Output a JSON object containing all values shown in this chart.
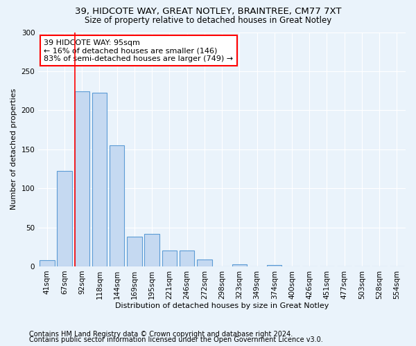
{
  "title1": "39, HIDCOTE WAY, GREAT NOTLEY, BRAINTREE, CM77 7XT",
  "title2": "Size of property relative to detached houses in Great Notley",
  "xlabel": "Distribution of detached houses by size in Great Notley",
  "ylabel": "Number of detached properties",
  "categories": [
    "41sqm",
    "67sqm",
    "92sqm",
    "118sqm",
    "144sqm",
    "169sqm",
    "195sqm",
    "221sqm",
    "246sqm",
    "272sqm",
    "298sqm",
    "323sqm",
    "349sqm",
    "374sqm",
    "400sqm",
    "426sqm",
    "451sqm",
    "477sqm",
    "503sqm",
    "528sqm",
    "554sqm"
  ],
  "values": [
    8,
    122,
    224,
    222,
    155,
    38,
    42,
    20,
    20,
    9,
    0,
    3,
    0,
    2,
    0,
    0,
    0,
    0,
    0,
    0,
    0
  ],
  "bar_color": "#c5d9f1",
  "bar_edge_color": "#5b9bd5",
  "annotation_text": "39 HIDCOTE WAY: 95sqm\n← 16% of detached houses are smaller (146)\n83% of semi-detached houses are larger (749) →",
  "annotation_box_color": "white",
  "annotation_box_edge_color": "red",
  "vline_color": "red",
  "vline_x": 1.575,
  "ylim": [
    0,
    300
  ],
  "yticks": [
    0,
    50,
    100,
    150,
    200,
    250,
    300
  ],
  "footer1": "Contains HM Land Registry data © Crown copyright and database right 2024.",
  "footer2": "Contains public sector information licensed under the Open Government Licence v3.0.",
  "background_color": "#eaf3fb",
  "plot_bg_color": "#eaf3fb",
  "grid_color": "white",
  "title_fontsize": 9.5,
  "subtitle_fontsize": 8.5,
  "axis_label_fontsize": 8,
  "tick_fontsize": 7.5,
  "footer_fontsize": 7
}
